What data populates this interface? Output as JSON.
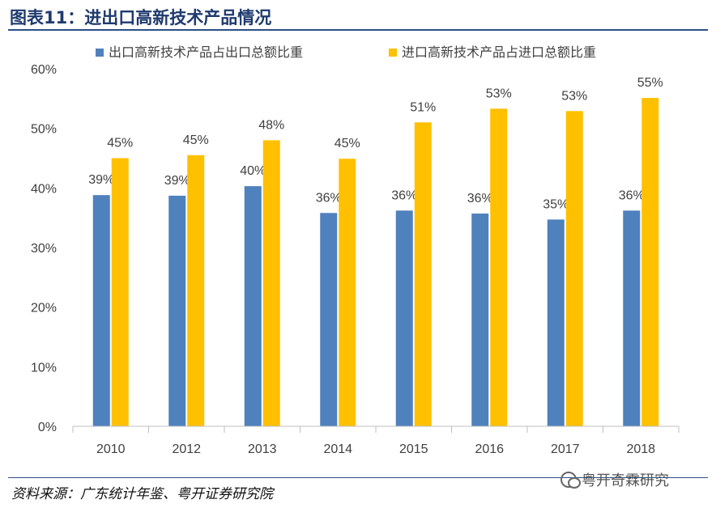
{
  "title": "图表11：进出口高新技术产品情况",
  "source": "资料来源：广东统计年鉴、粤开证券研究院",
  "watermark": "粤开奇霖研究",
  "colors": {
    "export": "#4f81bd",
    "import": "#ffc000"
  },
  "chart_data": {
    "type": "bar",
    "categories": [
      "2010",
      "2012",
      "2013",
      "2014",
      "2015",
      "2016",
      "2017",
      "2018"
    ],
    "series": [
      {
        "name": "出口高新技术产品占出口总额比重",
        "values": [
          38.8,
          38.7,
          40.3,
          35.8,
          36.2,
          35.7,
          34.7,
          36.2
        ],
        "labels": [
          "39%",
          "39%",
          "40%",
          "36%",
          "36%",
          "36%",
          "35%",
          "36%"
        ]
      },
      {
        "name": "进口高新技术产品占进口总额比重",
        "values": [
          45.0,
          45.5,
          48.0,
          44.9,
          51.0,
          53.3,
          52.9,
          55.1
        ],
        "labels": [
          "45%",
          "45%",
          "48%",
          "45%",
          "51%",
          "53%",
          "53%",
          "55%"
        ]
      }
    ],
    "yticks": [
      "0%",
      "10%",
      "20%",
      "30%",
      "40%",
      "50%",
      "60%"
    ],
    "ylim": [
      0,
      60
    ],
    "legend": "top",
    "grid": false
  }
}
